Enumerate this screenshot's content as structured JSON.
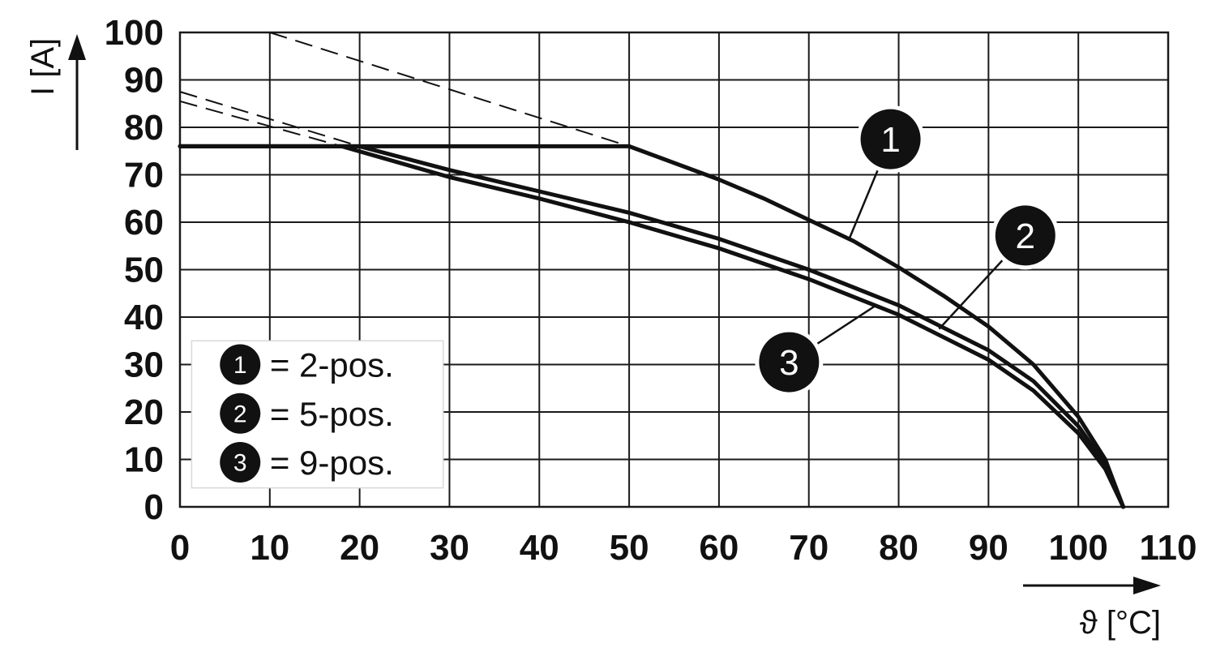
{
  "chart_data": {
    "type": "line",
    "xlabel": "ϑ [°C]",
    "ylabel": "I [A]",
    "xlim": [
      0,
      110
    ],
    "ylim": [
      0,
      100
    ],
    "xticks": [
      0,
      10,
      20,
      30,
      40,
      50,
      60,
      70,
      80,
      90,
      100,
      110
    ],
    "yticks": [
      0,
      10,
      20,
      30,
      40,
      50,
      60,
      70,
      80,
      90,
      100
    ],
    "grid": true,
    "series": [
      {
        "id": "1",
        "name": "2-pos.",
        "x": [
          0,
          50,
          55,
          60,
          65,
          70,
          75,
          80,
          85,
          90,
          95,
          100,
          103,
          105
        ],
        "y": [
          76,
          76,
          72.5,
          69,
          65,
          60.5,
          56,
          50.5,
          44.5,
          38,
          30,
          19,
          10,
          0
        ],
        "extrapolation": {
          "x": [
            10,
            50
          ],
          "y": [
            100,
            76
          ],
          "style": "dashed"
        }
      },
      {
        "id": "2",
        "name": "5-pos.",
        "x": [
          0,
          20,
          30,
          40,
          50,
          60,
          70,
          80,
          90,
          95,
          100,
          103,
          105
        ],
        "y": [
          76,
          76,
          71,
          66.5,
          62,
          56.5,
          50,
          42.5,
          33,
          26.5,
          17,
          9,
          0
        ],
        "extrapolation": {
          "x": [
            0,
            20
          ],
          "y": [
            87.5,
            76
          ],
          "style": "dashed"
        }
      },
      {
        "id": "3",
        "name": "9-pos.",
        "x": [
          0,
          18,
          30,
          40,
          50,
          60,
          70,
          80,
          90,
          95,
          100,
          103,
          105
        ],
        "y": [
          76,
          76,
          69.5,
          65,
          60,
          54.5,
          48,
          40.5,
          31,
          24.5,
          15.5,
          8,
          0
        ],
        "extrapolation": {
          "x": [
            0,
            18
          ],
          "y": [
            85.5,
            76
          ],
          "style": "dashed"
        }
      }
    ],
    "legend": {
      "placement": "bottom-left",
      "entries": [
        {
          "marker": "1",
          "text": "= 2-pos."
        },
        {
          "marker": "2",
          "text": "= 5-pos."
        },
        {
          "marker": "3",
          "text": "= 9-pos."
        }
      ]
    },
    "callouts": [
      {
        "marker": "1",
        "series": "1"
      },
      {
        "marker": "2",
        "series": "2"
      },
      {
        "marker": "3",
        "series": "3"
      }
    ]
  },
  "colors": {
    "line": "#111111",
    "grid": "#1a1a1a",
    "marker_fill": "#111111",
    "marker_text": "#ffffff"
  }
}
